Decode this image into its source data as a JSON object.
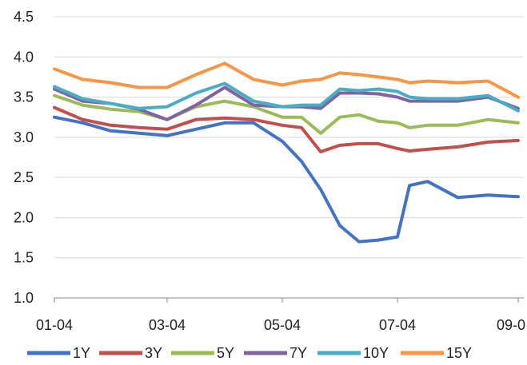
{
  "chart_data": {
    "type": "line",
    "title": "",
    "xlabel": "",
    "ylabel": "",
    "ylim": [
      1.0,
      4.5
    ],
    "yticks": [
      "1.0",
      "1.5",
      "2.0",
      "2.5",
      "3.0",
      "3.5",
      "4.0",
      "4.5"
    ],
    "xticks": [
      "01-04",
      "03-04",
      "05-04",
      "07-04",
      "09-0"
    ],
    "grid": "horizontal",
    "legend": "bottom",
    "x": [
      "01-04",
      "01-19",
      "02-04",
      "02-19",
      "03-04",
      "03-19",
      "04-04",
      "04-19",
      "05-04",
      "05-14",
      "05-24",
      "06-04",
      "06-14",
      "06-24",
      "07-04",
      "07-10",
      "07-19",
      "08-04",
      "08-19",
      "09-04"
    ],
    "series": [
      {
        "name": "1Y",
        "color": "#4472C4",
        "values": [
          3.25,
          3.18,
          3.08,
          3.05,
          3.02,
          3.1,
          3.18,
          3.18,
          2.95,
          2.7,
          2.35,
          1.9,
          1.7,
          1.72,
          1.76,
          2.4,
          2.45,
          2.25,
          2.28,
          2.26
        ]
      },
      {
        "name": "3Y",
        "color": "#C0504D",
        "values": [
          3.37,
          3.22,
          3.15,
          3.12,
          3.1,
          3.22,
          3.24,
          3.22,
          3.15,
          3.12,
          2.82,
          2.9,
          2.92,
          2.92,
          2.86,
          2.83,
          2.85,
          2.88,
          2.94,
          2.96
        ]
      },
      {
        "name": "5Y",
        "color": "#9BBB59",
        "values": [
          3.52,
          3.4,
          3.35,
          3.32,
          3.22,
          3.38,
          3.45,
          3.38,
          3.25,
          3.25,
          3.05,
          3.25,
          3.28,
          3.2,
          3.18,
          3.12,
          3.15,
          3.15,
          3.22,
          3.18
        ]
      },
      {
        "name": "7Y",
        "color": "#8064A2",
        "values": [
          3.6,
          3.45,
          3.42,
          3.35,
          3.22,
          3.4,
          3.62,
          3.4,
          3.38,
          3.38,
          3.36,
          3.55,
          3.55,
          3.54,
          3.5,
          3.45,
          3.45,
          3.45,
          3.5,
          3.36
        ]
      },
      {
        "name": "10Y",
        "color": "#4BACC6",
        "values": [
          3.63,
          3.48,
          3.42,
          3.36,
          3.38,
          3.55,
          3.67,
          3.45,
          3.38,
          3.4,
          3.4,
          3.6,
          3.58,
          3.6,
          3.57,
          3.5,
          3.48,
          3.48,
          3.52,
          3.33
        ]
      },
      {
        "name": "15Y",
        "color": "#F79646",
        "values": [
          3.85,
          3.72,
          3.68,
          3.62,
          3.62,
          3.78,
          3.92,
          3.72,
          3.65,
          3.7,
          3.72,
          3.8,
          3.78,
          3.75,
          3.72,
          3.68,
          3.7,
          3.68,
          3.7,
          3.5
        ]
      }
    ]
  }
}
